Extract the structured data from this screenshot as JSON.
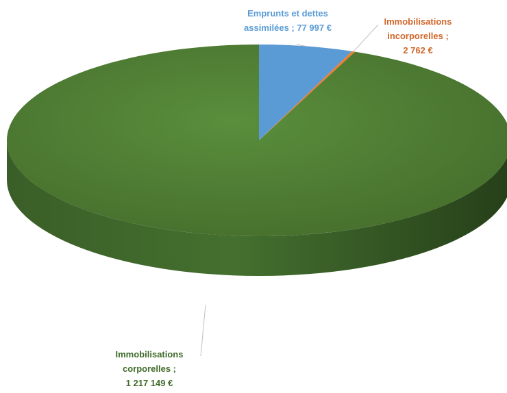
{
  "chart_data": {
    "type": "pie",
    "style": "3d",
    "slices": [
      {
        "category": "Emprunts et dettes assimilées",
        "value": 77997,
        "label_lines": [
          "Emprunts et dettes",
          "assimilées ; 77 997 €"
        ],
        "color": "#5b9bd5",
        "label_color": "#5b9bd5"
      },
      {
        "category": "Immobilisations incorporelles",
        "value": 2762,
        "label_lines": [
          "Immobilisations",
          "incorporelles ;",
          "2 762 €"
        ],
        "color": "#ed7d31",
        "label_color": "#d1662a"
      },
      {
        "category": "Immobilisations corporelles",
        "value": 1217149,
        "label_lines": [
          "Immobilisations",
          "corporelles ;",
          "1 217 149 €"
        ],
        "color": "#548235",
        "label_color": "#3f6b2a"
      }
    ],
    "legend": "none"
  }
}
